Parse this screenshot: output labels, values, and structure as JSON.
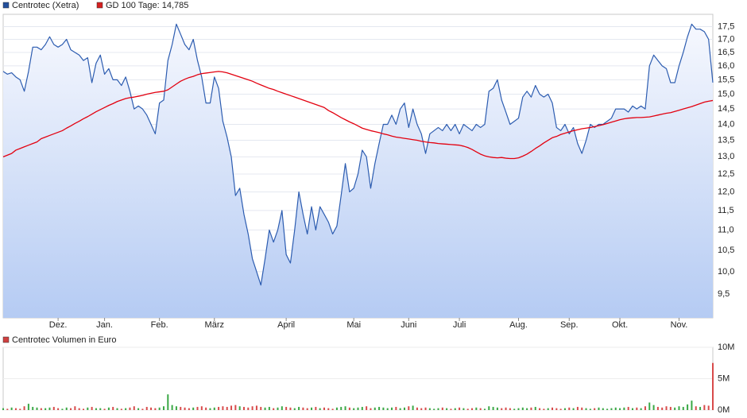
{
  "chart_data": [
    {
      "type": "line",
      "log_scale": true,
      "grid": true,
      "categories": [
        null,
        null,
        null,
        null,
        null,
        null,
        null,
        null,
        null,
        null,
        null,
        null,
        null,
        "Dez.",
        null,
        null,
        null,
        null,
        null,
        null,
        null,
        null,
        null,
        null,
        "Jan.",
        null,
        null,
        null,
        null,
        null,
        null,
        null,
        null,
        null,
        null,
        null,
        null,
        "Feb.",
        null,
        null,
        null,
        null,
        null,
        null,
        null,
        null,
        null,
        null,
        null,
        null,
        "März",
        null,
        null,
        null,
        null,
        null,
        null,
        null,
        null,
        null,
        null,
        null,
        null,
        null,
        null,
        null,
        null,
        "April",
        null,
        null,
        null,
        null,
        null,
        null,
        null,
        null,
        null,
        null,
        null,
        null,
        null,
        null,
        null,
        "Mai",
        null,
        null,
        null,
        null,
        null,
        null,
        null,
        null,
        null,
        null,
        null,
        null,
        "Juni",
        null,
        null,
        null,
        null,
        null,
        null,
        null,
        null,
        null,
        null,
        null,
        "Juli",
        null,
        null,
        null,
        null,
        null,
        null,
        null,
        null,
        null,
        null,
        null,
        null,
        null,
        "Aug.",
        null,
        null,
        null,
        null,
        null,
        null,
        null,
        null,
        null,
        null,
        null,
        "Sep.",
        null,
        null,
        null,
        null,
        null,
        null,
        null,
        null,
        null,
        null,
        null,
        "Okt.",
        null,
        null,
        null,
        null,
        null,
        null,
        null,
        null,
        null,
        null,
        null,
        null,
        null,
        "Nov.",
        null,
        null,
        null,
        null,
        null,
        null,
        null,
        null
      ],
      "series": [
        {
          "name": "Centrotec (Xetra)",
          "color": "#2c5cb0",
          "legend_color": "#23509c",
          "values": [
            15.8,
            15.7,
            15.75,
            15.6,
            15.5,
            15.1,
            15.8,
            16.7,
            16.7,
            16.6,
            16.8,
            17.1,
            16.8,
            16.7,
            16.8,
            17.0,
            16.6,
            16.5,
            16.4,
            16.2,
            16.3,
            15.4,
            16.1,
            16.4,
            15.7,
            15.9,
            15.5,
            15.5,
            15.3,
            15.6,
            15.1,
            14.5,
            14.6,
            14.5,
            14.3,
            14.0,
            13.7,
            14.7,
            14.8,
            16.2,
            16.8,
            17.6,
            17.2,
            16.8,
            16.6,
            17.0,
            16.2,
            15.6,
            14.7,
            14.7,
            15.6,
            15.2,
            14.1,
            13.6,
            13.0,
            11.9,
            12.1,
            11.4,
            10.9,
            10.3,
            10.0,
            9.7,
            10.3,
            11.0,
            10.7,
            11.0,
            11.5,
            10.4,
            10.2,
            11.0,
            12.0,
            11.4,
            10.9,
            11.6,
            11.0,
            11.6,
            11.4,
            11.2,
            10.9,
            11.1,
            11.9,
            12.8,
            12.0,
            12.1,
            12.5,
            13.2,
            13.0,
            12.1,
            12.8,
            13.4,
            14.0,
            14.0,
            14.3,
            14.0,
            14.5,
            14.7,
            13.9,
            14.5,
            14.0,
            13.7,
            13.1,
            13.7,
            13.8,
            13.9,
            13.8,
            14.0,
            13.8,
            14.0,
            13.7,
            14.0,
            13.9,
            13.8,
            14.0,
            13.9,
            14.0,
            15.1,
            15.2,
            15.5,
            14.8,
            14.4,
            14.0,
            14.1,
            14.2,
            14.9,
            15.1,
            14.9,
            15.3,
            15.0,
            14.9,
            15.0,
            14.7,
            13.9,
            13.8,
            14.0,
            13.7,
            13.9,
            13.4,
            13.1,
            13.5,
            14.0,
            13.9,
            14.0,
            14.0,
            14.1,
            14.2,
            14.5,
            14.5,
            14.5,
            14.4,
            14.6,
            14.5,
            14.6,
            14.5,
            16.0,
            16.4,
            16.2,
            16.0,
            15.9,
            15.4,
            15.4,
            16.0,
            16.5,
            17.1,
            17.6,
            17.4,
            17.4,
            17.3,
            17.0,
            15.4
          ]
        },
        {
          "name": "GD 100 Tage: 14,785",
          "color": "#e3000f",
          "legend_color": "#d42020",
          "values": [
            13.0,
            13.05,
            13.1,
            13.2,
            13.25,
            13.3,
            13.35,
            13.4,
            13.45,
            13.55,
            13.6,
            13.65,
            13.7,
            13.75,
            13.8,
            13.88,
            13.95,
            14.03,
            14.1,
            14.18,
            14.25,
            14.33,
            14.41,
            14.48,
            14.55,
            14.62,
            14.68,
            14.75,
            14.8,
            14.85,
            14.88,
            14.9,
            14.93,
            14.96,
            15.0,
            15.03,
            15.06,
            15.08,
            15.1,
            15.15,
            15.25,
            15.35,
            15.45,
            15.52,
            15.58,
            15.62,
            15.68,
            15.72,
            15.74,
            15.76,
            15.78,
            15.8,
            15.78,
            15.75,
            15.7,
            15.65,
            15.6,
            15.55,
            15.5,
            15.45,
            15.38,
            15.32,
            15.26,
            15.2,
            15.16,
            15.1,
            15.05,
            15.0,
            14.95,
            14.9,
            14.85,
            14.8,
            14.75,
            14.7,
            14.65,
            14.6,
            14.55,
            14.45,
            14.38,
            14.3,
            14.22,
            14.15,
            14.08,
            14.02,
            13.95,
            13.88,
            13.84,
            13.8,
            13.77,
            13.74,
            13.7,
            13.67,
            13.63,
            13.6,
            13.58,
            13.56,
            13.54,
            13.52,
            13.5,
            13.47,
            13.45,
            13.43,
            13.42,
            13.4,
            13.39,
            13.38,
            13.37,
            13.36,
            13.35,
            13.32,
            13.28,
            13.22,
            13.15,
            13.08,
            13.03,
            13.0,
            12.98,
            12.97,
            12.98,
            12.96,
            12.95,
            12.95,
            12.97,
            13.02,
            13.08,
            13.16,
            13.25,
            13.33,
            13.42,
            13.5,
            13.58,
            13.62,
            13.68,
            13.72,
            13.76,
            13.8,
            13.83,
            13.86,
            13.88,
            13.9,
            13.93,
            13.96,
            13.99,
            14.03,
            14.07,
            14.11,
            14.15,
            14.18,
            14.2,
            14.21,
            14.22,
            14.22,
            14.23,
            14.24,
            14.27,
            14.3,
            14.33,
            14.36,
            14.38,
            14.42,
            14.46,
            14.5,
            14.54,
            14.58,
            14.63,
            14.68,
            14.73,
            14.76,
            14.785
          ]
        }
      ],
      "ylim": [
        9.0,
        18.0
      ],
      "yticks": [
        {
          "value": 9.5,
          "label": "9,5"
        },
        {
          "value": 10.0,
          "label": "10,0"
        },
        {
          "value": 10.5,
          "label": "10,5"
        },
        {
          "value": 11.0,
          "label": "11,0"
        },
        {
          "value": 11.5,
          "label": "11,5"
        },
        {
          "value": 12.0,
          "label": "12,0"
        },
        {
          "value": 12.5,
          "label": "12,5"
        },
        {
          "value": 13.0,
          "label": "13,0"
        },
        {
          "value": 13.5,
          "label": "13,5"
        },
        {
          "value": 14.0,
          "label": "14,0"
        },
        {
          "value": 14.5,
          "label": "14,5"
        },
        {
          "value": 15.0,
          "label": "15,0"
        },
        {
          "value": 15.5,
          "label": "15,5"
        },
        {
          "value": 16.0,
          "label": "16,0"
        },
        {
          "value": 16.5,
          "label": "16,5"
        },
        {
          "value": 17.0,
          "label": "17,0"
        },
        {
          "value": 17.5,
          "label": "17,5"
        }
      ]
    },
    {
      "type": "bar",
      "up_color": "#3aa845",
      "down_color": "#d84a4a",
      "series": [
        {
          "name": "Centrotec Volumen in Euro",
          "legend_color": "#d04040",
          "values": [
            0.3,
            0.2,
            0.4,
            0.3,
            0.2,
            0.6,
            1.0,
            0.5,
            0.4,
            0.3,
            0.3,
            0.4,
            0.5,
            0.3,
            0.2,
            0.4,
            0.3,
            0.6,
            0.3,
            0.2,
            0.4,
            0.5,
            0.3,
            0.3,
            0.2,
            0.4,
            0.5,
            0.3,
            0.2,
            0.3,
            0.4,
            0.6,
            0.3,
            0.2,
            0.5,
            0.4,
            0.3,
            0.4,
            0.6,
            2.5,
            0.8,
            0.6,
            0.5,
            0.4,
            0.3,
            0.4,
            0.5,
            0.6,
            0.4,
            0.3,
            0.4,
            0.5,
            0.6,
            0.5,
            0.7,
            0.8,
            0.6,
            0.5,
            0.4,
            0.6,
            0.7,
            0.5,
            0.4,
            0.5,
            0.3,
            0.4,
            0.6,
            0.5,
            0.4,
            0.3,
            0.5,
            0.4,
            0.3,
            0.4,
            0.5,
            0.3,
            0.4,
            0.3,
            0.2,
            0.4,
            0.5,
            0.6,
            0.4,
            0.3,
            0.4,
            0.5,
            0.6,
            0.3,
            0.4,
            0.5,
            0.4,
            0.3,
            0.4,
            0.5,
            0.3,
            0.4,
            0.6,
            0.7,
            0.4,
            0.3,
            0.4,
            0.3,
            0.2,
            0.3,
            0.4,
            0.3,
            0.2,
            0.3,
            0.4,
            0.3,
            0.2,
            0.3,
            0.4,
            0.3,
            0.2,
            0.6,
            0.5,
            0.4,
            0.3,
            0.4,
            0.3,
            0.2,
            0.3,
            0.4,
            0.3,
            0.4,
            0.5,
            0.3,
            0.2,
            0.3,
            0.4,
            0.3,
            0.2,
            0.3,
            0.4,
            0.3,
            0.5,
            0.4,
            0.3,
            0.2,
            0.3,
            0.4,
            0.3,
            0.2,
            0.3,
            0.4,
            0.3,
            0.4,
            0.5,
            0.3,
            0.4,
            0.3,
            0.6,
            1.2,
            0.8,
            0.5,
            0.4,
            0.6,
            0.5,
            0.4,
            0.6,
            0.5,
            0.9,
            1.5,
            0.6,
            0.5,
            0.8,
            0.7,
            7.5
          ]
        }
      ],
      "ylim": [
        0,
        10
      ],
      "yticks": [
        {
          "value": 0,
          "label": "0M"
        },
        {
          "value": 5,
          "label": "5M"
        },
        {
          "value": 10,
          "label": "10M"
        }
      ]
    }
  ]
}
